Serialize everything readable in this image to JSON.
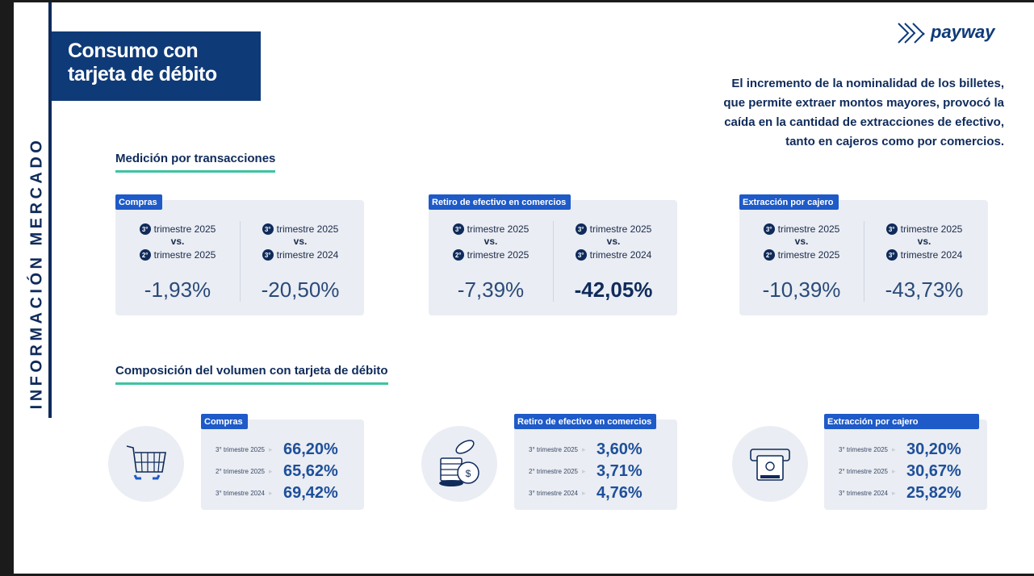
{
  "brand": {
    "name": "payway",
    "logo_icon": "payway-logo-icon"
  },
  "sidebar_label": "INFORMACIÓN MERCADO",
  "title": {
    "line1": "Consumo con",
    "line2": "tarjeta de débito"
  },
  "intro": {
    "line1": "El incremento de la nominalidad de los billetes,",
    "line2": "que permite extraer montos mayores, provocó la",
    "line3": "caída en la cantidad de extracciones de efectivo,",
    "line4": "tanto en cajeros como por comercios."
  },
  "section_transactions": {
    "title": "Medición por transacciones",
    "cards": [
      {
        "tag": "Compras",
        "left": {
          "n1": "3°",
          "l1": "trimestre 2025",
          "vs": "vs.",
          "n2": "2°",
          "l2": "trimestre 2025",
          "value": "-1,93%"
        },
        "right": {
          "n1": "3°",
          "l1": "trimestre 2025",
          "vs": "vs.",
          "n2": "3°",
          "l2": "trimestre 2024",
          "value": "-20,50%"
        }
      },
      {
        "tag": "Retiro de efectivo en comercios",
        "left": {
          "n1": "3°",
          "l1": "trimestre 2025",
          "vs": "vs.",
          "n2": "2°",
          "l2": "trimestre 2025",
          "value": "-7,39%"
        },
        "right": {
          "n1": "3°",
          "l1": "trimestre 2025",
          "vs": "vs.",
          "n2": "3°",
          "l2": "trimestre 2024",
          "value": "-42,05%"
        }
      },
      {
        "tag": "Extracción por cajero",
        "left": {
          "n1": "3°",
          "l1": "trimestre 2025",
          "vs": "vs.",
          "n2": "2°",
          "l2": "trimestre 2025",
          "value": "-10,39%"
        },
        "right": {
          "n1": "3°",
          "l1": "trimestre 2025",
          "vs": "vs.",
          "n2": "3°",
          "l2": "trimestre 2024",
          "value": "-43,73%"
        }
      }
    ]
  },
  "section_volume": {
    "title": "Composición del volumen con tarjeta de débito",
    "cards": [
      {
        "tag": "Compras",
        "icon": "shopping-cart-icon",
        "rows": [
          {
            "label": "3° trimestre 2025",
            "value": "66,20%"
          },
          {
            "label": "2° trimestre 2025",
            "value": "65,62%"
          },
          {
            "label": "3° trimestre 2024",
            "value": "69,42%"
          }
        ]
      },
      {
        "tag": "Retiro de efectivo en comercios",
        "icon": "coins-icon",
        "rows": [
          {
            "label": "3° trimestre 2025",
            "value": "3,60%"
          },
          {
            "label": "2° trimestre 2025",
            "value": "3,71%"
          },
          {
            "label": "3° trimestre 2024",
            "value": "4,76%"
          }
        ]
      },
      {
        "tag": "Extracción por cajero",
        "icon": "atm-icon",
        "rows": [
          {
            "label": "3° trimestre 2025",
            "value": "30,20%"
          },
          {
            "label": "2° trimestre 2025",
            "value": "30,67%"
          },
          {
            "label": "3° trimestre 2024",
            "value": "25,82%"
          }
        ]
      }
    ]
  },
  "colors": {
    "navy": "#0f2b5b",
    "title_bg": "#0e3a78",
    "tag_blue": "#1e5ac8",
    "accent_green": "#3ec3a0",
    "card_bg": "#eaedf3"
  }
}
